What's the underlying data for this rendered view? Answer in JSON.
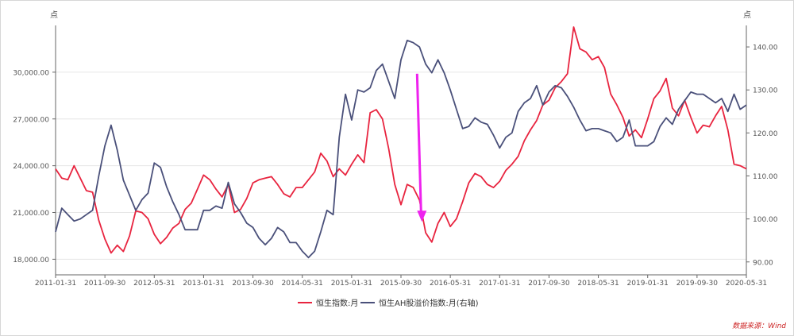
{
  "chart_data": {
    "type": "line",
    "y_left_unit": "点",
    "y_right_unit": "点",
    "ylim_left": [
      17000,
      33000
    ],
    "ylim_right": [
      87,
      145
    ],
    "y_left_ticks": [
      18000,
      21000,
      24000,
      27000,
      30000
    ],
    "y_left_tick_labels": [
      "18,000.00",
      "21,000.00",
      "24,000.00",
      "27,000.00",
      "30,000.00"
    ],
    "y_right_ticks": [
      90,
      100,
      110,
      120,
      130,
      140
    ],
    "y_right_tick_labels": [
      "90.00",
      "100.00",
      "110.00",
      "120.00",
      "130.00",
      "140.00"
    ],
    "x": [
      "2011-01-31",
      "2011-02-28",
      "2011-03-31",
      "2011-04-30",
      "2011-05-31",
      "2011-06-30",
      "2011-07-31",
      "2011-08-31",
      "2011-09-30",
      "2011-10-31",
      "2011-11-30",
      "2011-12-31",
      "2012-01-31",
      "2012-02-29",
      "2012-03-31",
      "2012-04-30",
      "2012-05-31",
      "2012-06-30",
      "2012-07-31",
      "2012-08-31",
      "2012-09-30",
      "2012-10-31",
      "2012-11-30",
      "2012-12-31",
      "2013-01-31",
      "2013-02-28",
      "2013-03-31",
      "2013-04-30",
      "2013-05-31",
      "2013-06-30",
      "2013-07-31",
      "2013-08-31",
      "2013-09-30",
      "2013-10-31",
      "2013-11-30",
      "2013-12-31",
      "2014-01-31",
      "2014-02-28",
      "2014-03-31",
      "2014-04-30",
      "2014-05-31",
      "2014-06-30",
      "2014-07-31",
      "2014-08-31",
      "2014-09-30",
      "2014-10-31",
      "2014-11-30",
      "2014-12-31",
      "2015-01-31",
      "2015-02-28",
      "2015-03-31",
      "2015-04-30",
      "2015-05-31",
      "2015-06-30",
      "2015-07-31",
      "2015-08-31",
      "2015-09-30",
      "2015-10-31",
      "2015-11-30",
      "2015-12-31",
      "2016-01-31",
      "2016-02-29",
      "2016-03-31",
      "2016-04-30",
      "2016-05-31",
      "2016-06-30",
      "2016-07-31",
      "2016-08-31",
      "2016-09-30",
      "2016-10-31",
      "2016-11-30",
      "2016-12-31",
      "2017-01-31",
      "2017-02-28",
      "2017-03-31",
      "2017-04-30",
      "2017-05-31",
      "2017-06-30",
      "2017-07-31",
      "2017-08-31",
      "2017-09-30",
      "2017-10-31",
      "2017-11-30",
      "2017-12-31",
      "2018-01-31",
      "2018-02-28",
      "2018-03-31",
      "2018-04-30",
      "2018-05-31",
      "2018-06-30",
      "2018-07-31",
      "2018-08-31",
      "2018-09-30",
      "2018-10-31",
      "2018-11-30",
      "2018-12-31",
      "2019-01-31",
      "2019-02-28",
      "2019-03-31",
      "2019-04-30",
      "2019-05-31",
      "2019-06-30",
      "2019-07-31",
      "2019-08-31",
      "2019-09-30",
      "2019-10-31",
      "2019-11-30",
      "2019-12-31",
      "2020-01-31",
      "2020-02-29",
      "2020-03-31",
      "2020-04-30",
      "2020-05-31"
    ],
    "x_tick_labels": [
      "2011-01-31",
      "2011-09-30",
      "2012-05-31",
      "2013-01-31",
      "2013-09-30",
      "2014-05-31",
      "2015-01-31",
      "2015-09-30",
      "2016-05-31",
      "2017-01-31",
      "2017-09-30",
      "2018-05-31",
      "2019-01-31",
      "2019-09-30",
      "2020-05-31"
    ],
    "x_tick_indices": [
      0,
      8,
      16,
      24,
      32,
      40,
      48,
      56,
      64,
      72,
      80,
      88,
      96,
      104,
      112
    ],
    "series": [
      {
        "name": "恒生指数:月",
        "axis": "left",
        "color": "#e8243f",
        "values": [
          23800,
          23200,
          23100,
          24000,
          23200,
          22400,
          22300,
          20500,
          19300,
          18400,
          18900,
          18500,
          19500,
          21100,
          21000,
          20600,
          19600,
          19000,
          19400,
          20000,
          20300,
          21200,
          21600,
          22500,
          23400,
          23100,
          22500,
          22000,
          22800,
          21000,
          21200,
          21900,
          22900,
          23100,
          23200,
          23300,
          22800,
          22200,
          22000,
          22600,
          22600,
          23100,
          23600,
          24800,
          24300,
          23300,
          23800,
          23400,
          24100,
          24700,
          24200,
          27400,
          27600,
          27000,
          25100,
          22800,
          21500,
          22800,
          22600,
          21800,
          19700,
          19100,
          20300,
          21000,
          20100,
          20600,
          21700,
          22900,
          23500,
          23300,
          22800,
          22600,
          23000,
          23700,
          24100,
          24600,
          25600,
          26300,
          26900,
          27900,
          28200,
          29000,
          29400,
          29900,
          32900,
          31500,
          31300,
          30800,
          31000,
          30300,
          28600,
          27900,
          27100,
          25900,
          26300,
          25800,
          27000,
          28300,
          28800,
          29600,
          27700,
          27200,
          28200,
          27100,
          26100,
          26600,
          26500,
          27200,
          27800,
          26300,
          24100,
          24000,
          23800
        ]
      },
      {
        "name": "恒生AH股溢价指数:月(右轴)",
        "axis": "right",
        "color": "#4a507a",
        "values": [
          97,
          102.5,
          101,
          99.5,
          100,
          101,
          102,
          110,
          117,
          121.8,
          116,
          109,
          105.5,
          102,
          104.5,
          106,
          113,
          112,
          107.5,
          104,
          101,
          97.5,
          97.5,
          97.5,
          102,
          102,
          103,
          102.5,
          108.5,
          103.5,
          101.5,
          99,
          98,
          95.5,
          94,
          95.5,
          98,
          97,
          94.5,
          94.5,
          92.5,
          91,
          92.5,
          97,
          102,
          101,
          119,
          129,
          123,
          130,
          129.5,
          130.5,
          134.5,
          136,
          132,
          128,
          137,
          141.5,
          141,
          140,
          136,
          134,
          137,
          134,
          130,
          125.5,
          121,
          121.5,
          123.5,
          122.5,
          122,
          119.5,
          116.5,
          119,
          120,
          125,
          127,
          128,
          131,
          126.5,
          129.5,
          131,
          130.5,
          128.5,
          126,
          123,
          120.5,
          121,
          121,
          120.5,
          120,
          118,
          119,
          123,
          117,
          117,
          117,
          118,
          121.5,
          123.5,
          122,
          125.5,
          127.5,
          129.5,
          129,
          129,
          128,
          127,
          128,
          125,
          129,
          125.5,
          126.5
        ]
      }
    ],
    "annotation": {
      "type": "arrow",
      "color": "#ee22ee",
      "from": {
        "x": "2015-12-31",
        "y_left": 29900
      },
      "to": {
        "x": "2015-12-31",
        "y_left": 20400
      }
    },
    "source_note": "数据来源：Wind"
  }
}
